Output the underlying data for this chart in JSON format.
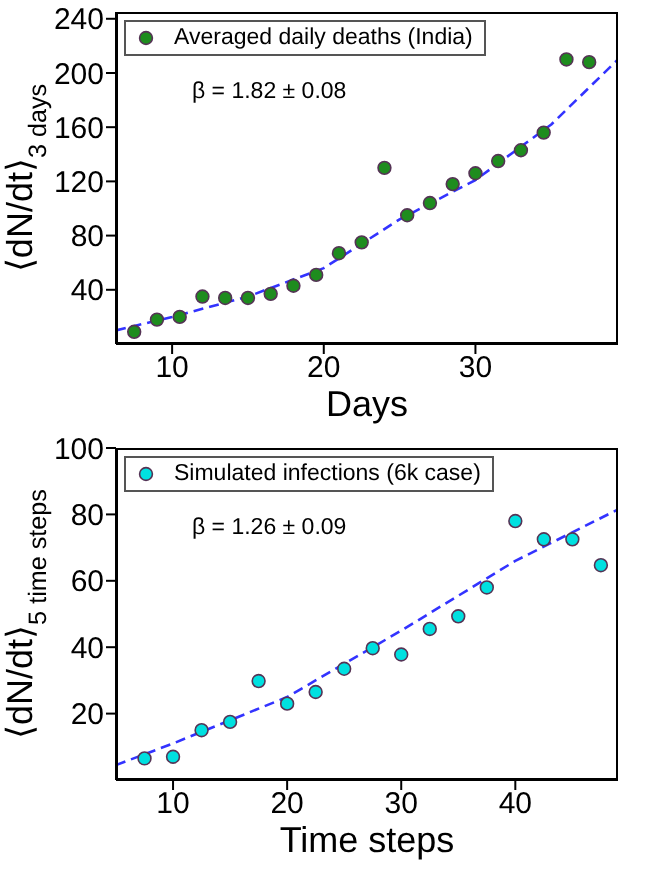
{
  "chart_data": [
    {
      "type": "scatter",
      "xlabel": "Days",
      "ylabel": "⟨dN/dt⟩$_{3 days}$",
      "xlim": [
        6.3,
        39.4
      ],
      "ylim": [
        0,
        245
      ],
      "xticks": [
        10,
        20,
        30
      ],
      "yticks": [
        40,
        80,
        120,
        160,
        200,
        240
      ],
      "grid": false,
      "legend": "top left",
      "annotations": [
        "β = 1.82 ± 0.08"
      ],
      "series": [
        {
          "name": "Averaged daily deaths (India)",
          "marker": "circle",
          "color": "#1e8c1e",
          "x": [
            7.5,
            9,
            10.5,
            12,
            13.5,
            15,
            16.5,
            18,
            19.5,
            21,
            22.5,
            24,
            25.5,
            27,
            28.5,
            30,
            31.5,
            33,
            34.5,
            36,
            37.5
          ],
          "values": [
            9,
            18,
            20,
            35,
            34,
            34,
            37,
            43,
            51,
            67,
            75,
            130,
            95,
            104,
            118,
            126,
            135,
            143,
            156,
            210,
            208
          ]
        },
        {
          "type": "line",
          "marker": "none",
          "line_style": "dashed",
          "color": "#3333ff",
          "x": [
            6.3,
            10,
            15,
            20,
            25,
            30,
            35,
            39.4
          ],
          "values": [
            10,
            20,
            35,
            56,
            92,
            121,
            162,
            210
          ]
        }
      ]
    },
    {
      "type": "scatter",
      "xlabel": "Time steps",
      "ylabel": "⟨dN/dt⟩$_{5 time steps}$",
      "xlim": [
        5,
        49
      ],
      "ylim": [
        0,
        100
      ],
      "xticks": [
        10,
        20,
        30,
        40
      ],
      "yticks": [
        20,
        40,
        60,
        80,
        100
      ],
      "grid": false,
      "legend": "top left",
      "annotations": [
        "β = 1.26 ± 0.09"
      ],
      "series": [
        {
          "name": "Simulated infections (6k case)",
          "marker": "circle",
          "color": "#00e0e0",
          "x": [
            7.5,
            10,
            12.5,
            15,
            17.5,
            20,
            22.5,
            25,
            27.5,
            30,
            32.5,
            35,
            37.5,
            40,
            42.5,
            45,
            47.5
          ],
          "values": [
            6.5,
            7,
            15,
            17.5,
            29.8,
            23,
            26.5,
            33.5,
            39.7,
            37.8,
            45.5,
            49.3,
            58,
            78,
            72.5,
            72.5,
            64.7
          ]
        },
        {
          "type": "line",
          "marker": "none",
          "line_style": "dashed",
          "color": "#3333ff",
          "x": [
            5,
            10,
            20,
            30,
            40,
            49
          ],
          "values": [
            4.5,
            11,
            25,
            45,
            66,
            81.5
          ]
        }
      ]
    }
  ]
}
